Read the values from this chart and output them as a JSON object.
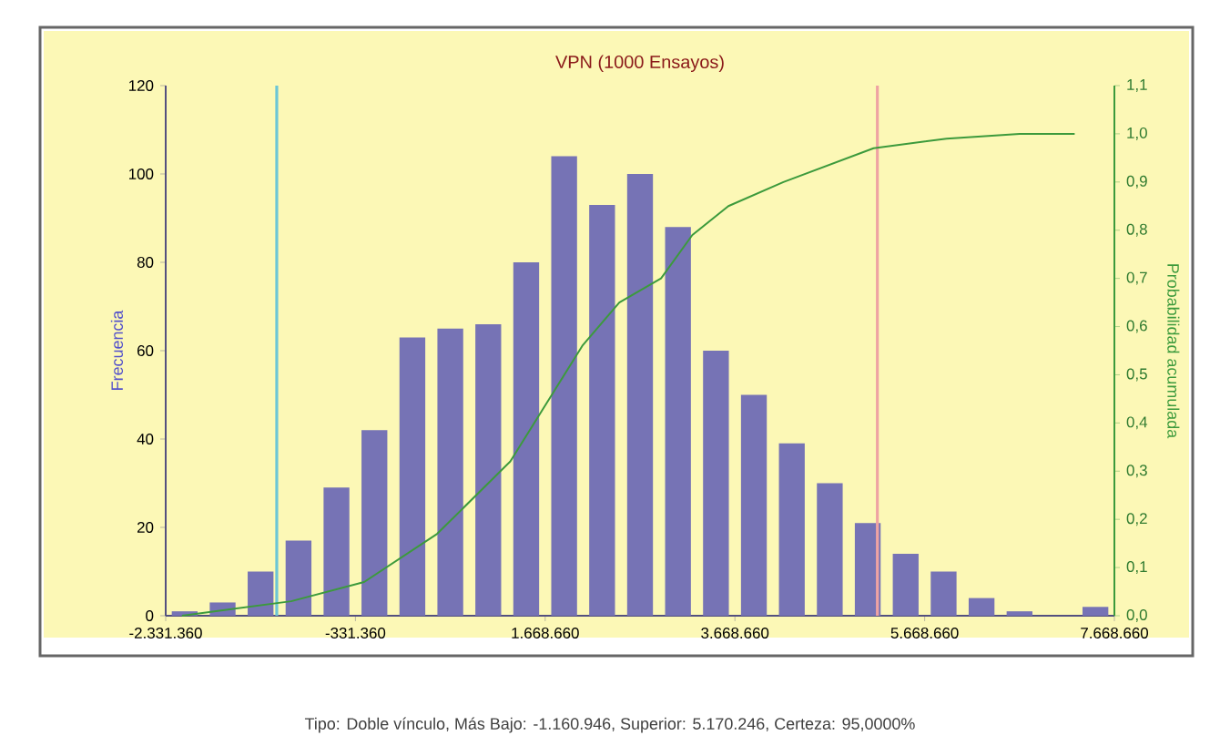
{
  "chart_data": {
    "type": "histogram",
    "title": "VPN (1000 Ensayos)",
    "ylabel": "Frecuencia",
    "y2label": "Probabilidad acumulada",
    "bins": [
      -2331360,
      -1931360,
      -1531360,
      -1131360,
      -731360,
      -331360,
      68640,
      468640,
      868640,
      1268640,
      1668640,
      2068640,
      2468640,
      2868640,
      3268640,
      3668640,
      4068640,
      4468640,
      4868640,
      5268640,
      5668640,
      6068640,
      6468640,
      6868640,
      7268640,
      7668640
    ],
    "values": [
      1,
      3,
      10,
      17,
      29,
      42,
      63,
      65,
      66,
      80,
      104,
      93,
      100,
      88,
      60,
      50,
      39,
      30,
      21,
      14,
      10,
      4,
      1,
      0,
      2
    ],
    "color": "#7673b5",
    "series": [
      {
        "type": "line",
        "axis": "y2",
        "color": "#3c9a3c",
        "x": [
          -2160000,
          -1010000,
          -240000,
          530000,
          1300000,
          2060000,
          2450000,
          2890000,
          3220000,
          3600000,
          4180000,
          5130000,
          5900000,
          6670000,
          7250000
        ],
        "values": [
          0,
          0.03,
          0.07,
          0.17,
          0.32,
          0.56,
          0.65,
          0.7,
          0.79,
          0.85,
          0.9,
          0.97,
          0.99,
          1.0,
          1.0
        ]
      }
    ],
    "xlim": [
      -2331360,
      7668660
    ],
    "xticks": [
      {
        "value": -2331360,
        "label": "-2.331.360"
      },
      {
        "value": -331360,
        "label": "-331.360"
      },
      {
        "value": 1668660,
        "label": "1.668.660"
      },
      {
        "value": 3668660,
        "label": "3.668.660"
      },
      {
        "value": 5668660,
        "label": "5.668.660"
      },
      {
        "value": 7668660,
        "label": "7.668.660"
      }
    ],
    "ylim": [
      0,
      120
    ],
    "yticks": [
      0,
      20,
      40,
      60,
      80,
      100,
      120
    ],
    "y2lim": [
      0,
      1.1
    ],
    "y2ticks": [
      {
        "value": 0,
        "label": "0,0"
      },
      {
        "value": 0.1,
        "label": "0,1"
      },
      {
        "value": 0.2,
        "label": "0,2"
      },
      {
        "value": 0.3,
        "label": "0,3"
      },
      {
        "value": 0.4,
        "label": "0,4"
      },
      {
        "value": 0.5,
        "label": "0,5"
      },
      {
        "value": 0.6,
        "label": "0,6"
      },
      {
        "value": 0.7,
        "label": "0,7"
      },
      {
        "value": 0.8,
        "label": "0,8"
      },
      {
        "value": 0.9,
        "label": "0,9"
      },
      {
        "value": 1.0,
        "label": "1,0"
      },
      {
        "value": 1.1,
        "label": "1,1"
      }
    ],
    "ref_lines": [
      {
        "axis": "x",
        "value": -1160946,
        "color": "#6cc6d6"
      },
      {
        "axis": "x",
        "value": 5170246,
        "color": "#eea3a3"
      }
    ],
    "annotations": [
      "Tipo: Doble vínculo, Más Bajo: -1.160.946, Superior: 5.170.246, Certeza: 95,0000%"
    ]
  }
}
